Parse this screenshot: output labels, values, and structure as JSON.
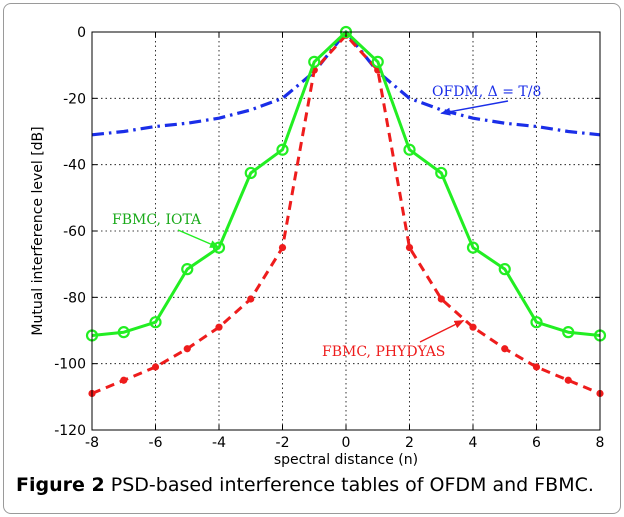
{
  "caption": {
    "label": "Figure 2",
    "text": "PSD-based interference tables of OFDM and FBMC."
  },
  "chart_data": {
    "type": "line",
    "xlabel": "spectral distance (n)",
    "ylabel": "Mutual interference level [dB]",
    "xlim": [
      -8,
      8
    ],
    "ylim": [
      -120,
      0
    ],
    "xticks": [
      -8,
      -6,
      -4,
      -2,
      0,
      2,
      4,
      6,
      8
    ],
    "yticks": [
      0,
      -20,
      -40,
      -60,
      -80,
      -100,
      -120
    ],
    "grid": true,
    "series": [
      {
        "name": "FBMC, IOTA",
        "color": "#22ee22",
        "style": "solid",
        "marker": "circle-open",
        "x": [
          -8,
          -7,
          -6,
          -5,
          -4,
          -3,
          -2,
          -1,
          0,
          1,
          2,
          3,
          4,
          5,
          6,
          7,
          8
        ],
        "values": [
          -91.5,
          -90.5,
          -87.5,
          -71.5,
          -65,
          -42.5,
          -35.5,
          -9,
          0,
          -9,
          -35.5,
          -42.5,
          -65,
          -71.5,
          -87.5,
          -90.5,
          -91.5
        ]
      },
      {
        "name": "FBMC, PHYDYAS",
        "color": "#ee1c1c",
        "style": "dashed",
        "marker": "dot",
        "x": [
          -8,
          -7,
          -6,
          -5,
          -4,
          -3,
          -2,
          -1,
          0,
          1,
          2,
          3,
          4,
          5,
          6,
          7,
          8
        ],
        "values": [
          -109,
          -105,
          -101,
          -95.5,
          -89,
          -80.5,
          -65,
          -11.5,
          -1,
          -11.5,
          -65,
          -80.5,
          -89,
          -95.5,
          -101,
          -105,
          -109
        ]
      },
      {
        "name": "OFDM, Δ = T/8",
        "color": "#1a2ee8",
        "style": "dashdot",
        "marker": "none",
        "x": [
          -8,
          -7,
          -6,
          -5,
          -4,
          -3,
          -2,
          -1,
          0,
          1,
          2,
          3,
          4,
          5,
          6,
          7,
          8
        ],
        "values": [
          -31,
          -30,
          -28.5,
          -27.5,
          -26,
          -23.5,
          -20,
          -12,
          0,
          -12,
          -20,
          -23.5,
          -26,
          -27.5,
          -28.5,
          -30,
          -31
        ]
      }
    ],
    "annotations": [
      {
        "text": "OFDM, Δ = T/8",
        "series": "OFDM, Δ = T/8",
        "point_to": [
          3,
          -24.5
        ]
      },
      {
        "text": "FBMC, IOTA",
        "series": "FBMC, IOTA",
        "point_to": [
          -4,
          -65
        ]
      },
      {
        "text": "FBMC, PHYDYAS",
        "series": "FBMC, PHYDYAS",
        "point_to": [
          3.7,
          -87
        ]
      }
    ]
  }
}
